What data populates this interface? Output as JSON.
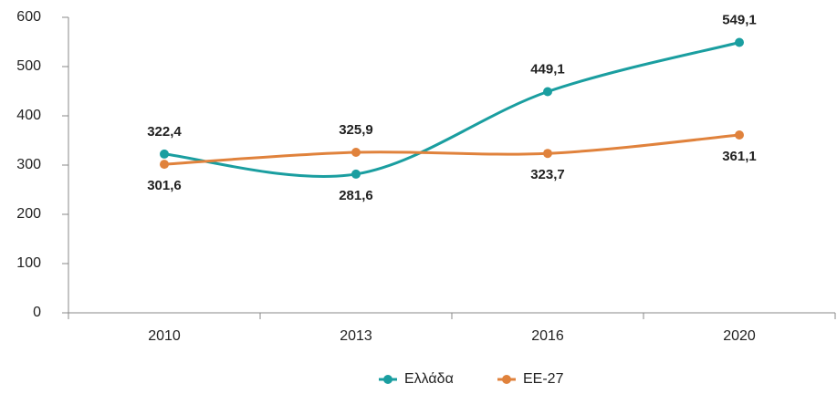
{
  "chart_data": {
    "type": "line",
    "categories": [
      "2010",
      "2013",
      "2016",
      "2020"
    ],
    "series": [
      {
        "name": "Ελλάδα",
        "color": "#1a9ea0",
        "values": [
          322.4,
          281.6,
          449.1,
          549.1
        ],
        "value_labels": [
          "322,4",
          "281,6",
          "449,1",
          "549,1"
        ]
      },
      {
        "name": "ΕΕ-27",
        "color": "#e0823c",
        "values": [
          301.6,
          325.9,
          323.7,
          361.1
        ],
        "value_labels": [
          "301,6",
          "325,9",
          "323,7",
          "361,1"
        ]
      }
    ],
    "ylim": [
      0,
      600
    ],
    "yticks": [
      0,
      100,
      200,
      300,
      400,
      500,
      600
    ],
    "legend": "bottom"
  }
}
